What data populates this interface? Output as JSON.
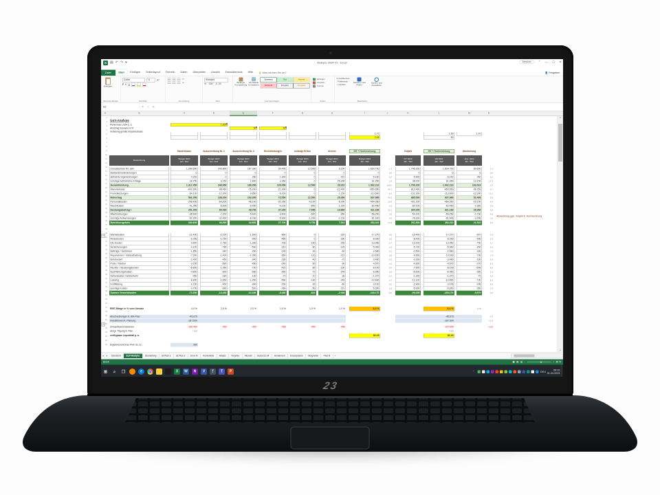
{
  "colors": {
    "excel_green": "#217346",
    "total_green": "#3a873a",
    "subtotal_green": "#e2efda",
    "yellow": "#ffff00",
    "orange": "#ffc000",
    "light_blue": "#dce6f1",
    "header_gray": "#595959",
    "negative_red": "#ff0000",
    "group_header_text": "#843c0c"
  },
  "titlebar": {
    "title": "Analyse 2024 V2 - Excel",
    "user": "Benutzer"
  },
  "ribbon": {
    "file": "Datei",
    "active_tab": "Start",
    "tabs": [
      "Start",
      "Einfügen",
      "Seitenlayout",
      "Formeln",
      "Daten",
      "Überprüfen",
      "Ansicht",
      "Entwicklertools",
      "Hilfe"
    ],
    "tellme": "Was möchten Sie tun?",
    "share": "Freigeben",
    "font_name": "Calibri",
    "font_size": "11",
    "number_format": "Standard",
    "paste": "Einfügen",
    "cond": "Bedingte Formatierung",
    "astable": "Als Tabelle formatieren",
    "styles": [
      "Standard",
      "Gut",
      "Neutral",
      "Schlecht",
      "Eingabe",
      "Ausgabe"
    ],
    "groups": [
      "Zwischenablage",
      "Schriftart",
      "Ausrichtung",
      "Zahl",
      "Formatvorlagen",
      "Zellen",
      "Bearbeiten"
    ],
    "cells_btns": [
      "Einfügen",
      "Löschen",
      "Format"
    ],
    "edit_small": [
      "AutoSumme",
      "Füllbereich",
      "Löschen"
    ],
    "edit_big": [
      "Sortieren und Filtern",
      "Suchen und Auswählen"
    ]
  },
  "formula": {
    "name_box": "E8"
  },
  "col_letters": {
    "letters": [
      "A",
      "B",
      "C",
      "D",
      "E",
      "F",
      "G",
      "H",
      "I",
      "J",
      "K",
      "L",
      "M",
      "N"
    ],
    "selected": "E"
  },
  "sheet": {
    "title": "GuV-Analyse",
    "inputs": [
      {
        "label": "Planumsatz 2024 p. a.",
        "cells": [
          {
            "col": 0,
            "span": 2,
            "value": "1.500",
            "style": "yellow",
            "comment": true
          }
        ]
      },
      {
        "label": "Abschlag Szenario in %",
        "cells": [
          {
            "col": 2,
            "span": 1,
            "value": "50",
            "style": "yellow",
            "comment": true
          },
          {
            "col": 3,
            "span": 1,
            "value": "50",
            "style": "yellow",
            "comment": true
          }
        ]
      },
      {
        "label": "Verteilung gemäß Vorjahresbasis",
        "cells": []
      }
    ],
    "mini_boxes": {
      "hl": [
        "1,71",
        "2,05"
      ],
      "r2": [
        "1,50",
        "50"
      ],
      "r3": [
        "1,70"
      ]
    },
    "group_headers": {
      "left": [
        "Handelsware",
        "Ausschreibung Nr. 1",
        "Ausschreibung Nr. 2",
        "Dienstleistungen",
        "sonstige Erlöse",
        "diverse"
      ],
      "hl": "IST + Hochrechnung",
      "right": [
        "Vorjahr",
        "IST + Hochrechnung",
        "Abweichung"
      ]
    },
    "headers": {
      "label": "Bezeichnung",
      "l1": "Budget 2024",
      "l2": "Jan - Dez",
      "r1a": "IST 2023",
      "r2a": "HR 2024",
      "r3a": "Abw. 2024"
    },
    "annotation": "Abweichung ggü. Vorjahr lt. Hochrechnung",
    "upper_rows": [
      {
        "t": "n",
        "label": "Umsatzerlöse lfd. Jahr",
        "v": [
          "1.284.500",
          "245.800",
          "187.300",
          "96.400",
          "12.500",
          "8.200"
        ],
        "hl": "1.834.700",
        "p": "1,7",
        "r": [
          "1.745.200",
          "1.834.700",
          "89.500"
        ],
        "rp": "5,1"
      },
      {
        "t": "n",
        "label": "Bestandsveränderungen",
        "v": [
          "0",
          "0",
          "0",
          "0",
          "0",
          "0"
        ],
        "hl": "0",
        "p": "0,0",
        "r": [
          "0",
          "0",
          "0"
        ],
        "rp": "0,0"
      },
      {
        "t": "n",
        "label": "aktivierte Eigenleistungen",
        "v": [
          "4.200",
          "0",
          "250",
          "1.300",
          "0",
          "410"
        ],
        "hl": "6.160",
        "p": "0,3",
        "r": [
          "5.800",
          "6.160",
          "360"
        ],
        "rp": "6,2"
      },
      {
        "t": "n",
        "label": "sonstige betriebliche Erträge",
        "v": [
          "28.750",
          "3.150",
          "1.800",
          "2.350",
          "0",
          "25.300"
        ],
        "hl": "61.350",
        "p": "2,8",
        "r": [
          "48.200",
          "61.350",
          "13.150"
        ],
        "rp": "27,3"
      },
      {
        "t": "s",
        "label": "Gesamtleistung",
        "v": [
          "1.317.450",
          "248.950",
          "189.350",
          "100.050",
          "12.500",
          "33.910"
        ],
        "hl": "1.902.210",
        "p": "100,0",
        "r": [
          "1.799.200",
          "1.902.210",
          "103.010"
        ],
        "rp": "5,7"
      },
      {
        "t": "n",
        "label": "Wareneinsatz",
        "v": [
          "-642.300",
          "-98.450",
          "-76.200",
          "-21.300",
          "0",
          "-12.400"
        ],
        "hl": "-850.650",
        "p": "44,7",
        "r": [
          "-812.400",
          "-850.650",
          "-38.250"
        ],
        "rp": "4,7"
      },
      {
        "t": "n",
        "label": "Fremdleistungen",
        "v": [
          "-84.100",
          "-12.300",
          "-9.850",
          "-6.200",
          "0",
          "-1.150"
        ],
        "hl": "-113.600",
        "p": "6,0",
        "r": [
          "-101.300",
          "-113.600",
          "-12.300"
        ],
        "rp": "12,1"
      },
      {
        "t": "s",
        "label": "Rohertrag",
        "v": [
          "591.050",
          "138.200",
          "103.300",
          "72.550",
          "12.500",
          "20.360"
        ],
        "hl": "937.960",
        "p": "49,3",
        "r": [
          "885.500",
          "937.960",
          "52.460"
        ],
        "rp": "5,9"
      },
      {
        "t": "n",
        "label": "Personalkosten",
        "v": [
          "-298.400",
          "-64.200",
          "-48.100",
          "-31.250",
          "-4.100",
          "-8.300"
        ],
        "hl": "-454.350",
        "p": "23,9",
        "r": [
          "-431.200",
          "-454.350",
          "-23.150"
        ],
        "rp": "5,4"
      },
      {
        "t": "n",
        "label": "Raumkosten",
        "v": [
          "-41.250",
          "-8.600",
          "-6.450",
          "-4.100",
          "-850",
          "-1.200"
        ],
        "hl": "-62.450",
        "p": "3,3",
        "r": [
          "-60.100",
          "-62.450",
          "-2.350"
        ],
        "rp": "3,9"
      },
      {
        "t": "s",
        "label": "Deckungsbeitrag I",
        "v": [
          "251.400",
          "65.400",
          "48.750",
          "37.200",
          "7.550",
          "10.860"
        ],
        "hl": "421.160",
        "p": "22,1",
        "r": [
          "394.200",
          "421.160",
          "26.960"
        ],
        "rp": "6,8"
      },
      {
        "t": "n",
        "label": "Abschreibungen",
        "v": [
          "-38.500",
          "-7.200",
          "-5.400",
          "-3.600",
          "-600",
          "-950"
        ],
        "hl": "-56.250",
        "p": "3,0",
        "r": [
          "-54.100",
          "-56.250",
          "-2.150"
        ],
        "rp": "4,0"
      },
      {
        "t": "n",
        "label": "sonstige Aufwendungen",
        "v": [
          "-52.300",
          "-11.400",
          "-8.700",
          "-5.900",
          "-1.200",
          "-2.100"
        ],
        "hl": "-81.600",
        "p": "4,3",
        "r": [
          "-78.300",
          "-81.600",
          "-3.300"
        ],
        "rp": "4,2"
      },
      {
        "t": "t",
        "label": "Betriebsergebnis",
        "v": [
          "160.600",
          "46.800",
          "34.650",
          "27.700",
          "5.750",
          "7.810"
        ],
        "hl": "283.310",
        "p": "14,9",
        "r": [
          "261.800",
          "283.310",
          "21.510"
        ],
        "rp": "8,2"
      }
    ],
    "mid_rows": [
      {
        "t": "n",
        "label": "Werbekosten",
        "v": [
          "-12.400",
          "-2.100",
          "-1.600",
          "-850",
          "0",
          "-320"
        ],
        "hl": "-17.270",
        "p": "0,9",
        "r": [
          "-16.400",
          "-17.270",
          "-870"
        ],
        "rp": "5,3"
      },
      {
        "t": "n",
        "label": "Reisekosten",
        "v": [
          "-6.250",
          "-1.150",
          "-900",
          "-450",
          "0",
          "-180"
        ],
        "hl": "-8.930",
        "p": "0,5",
        "r": [
          "-8.400",
          "-8.930",
          "-530"
        ],
        "rp": "6,3"
      },
      {
        "t": "n",
        "label": "Kfz-Kosten",
        "v": [
          "-9.800",
          "-1.750",
          "-1.300",
          "-700",
          "-150",
          "-250"
        ],
        "hl": "-13.950",
        "p": "0,7",
        "r": [
          "-13.200",
          "-13.950",
          "-750"
        ],
        "rp": "5,7"
      },
      {
        "t": "n",
        "label": "Versicherungen",
        "v": [
          "-4.100",
          "-780",
          "-590",
          "-310",
          "-60",
          "-120"
        ],
        "hl": "-5.960",
        "p": "0,3",
        "r": [
          "-5.700",
          "-5.960",
          "-260"
        ],
        "rp": "4,6"
      },
      {
        "t": "n",
        "label": "Beiträge / Gebühren",
        "v": [
          "-1.850",
          "-340",
          "-260",
          "-140",
          "-30",
          "-60"
        ],
        "hl": "-2.680",
        "p": "0,1",
        "r": [
          "-2.500",
          "-2.680",
          "-180"
        ],
        "rp": "7,2"
      },
      {
        "t": "n",
        "label": "Reparaturen / Instandhaltung",
        "v": [
          "-7.300",
          "-1.400",
          "-1.050",
          "-560",
          "-110",
          "-210"
        ],
        "hl": "-10.630",
        "p": "0,6",
        "r": [
          "-9.900",
          "-10.630",
          "-730"
        ],
        "rp": "7,4"
      },
      {
        "t": "n",
        "label": "Bürobedarf",
        "v": [
          "-2.400",
          "-450",
          "-340",
          "-180",
          "-40",
          "-70"
        ],
        "hl": "-3.480",
        "p": "0,2",
        "r": [
          "-3.300",
          "-3.480",
          "-180"
        ],
        "rp": "5,5"
      },
      {
        "t": "n",
        "label": "Porto / Telefon",
        "v": [
          "-3.150",
          "-590",
          "-450",
          "-240",
          "-50",
          "-90"
        ],
        "hl": "-4.570",
        "p": "0,2",
        "r": [
          "-4.300",
          "-4.570",
          "-270"
        ],
        "rp": "6,3"
      },
      {
        "t": "n",
        "label": "Rechts- / Beratungskosten",
        "v": [
          "-5.600",
          "-1.050",
          "-790",
          "-420",
          "-80",
          "-160"
        ],
        "hl": "-8.100",
        "p": "0,4",
        "r": [
          "-7.600",
          "-8.100",
          "-500"
        ],
        "rp": "6,6"
      },
      {
        "t": "n",
        "label": "Buchführungskosten",
        "v": [
          "-4.800",
          "-900",
          "-680",
          "-360",
          "-70",
          "-140"
        ],
        "hl": "-6.950",
        "p": "0,4",
        "r": [
          "-6.600",
          "-6.950",
          "-350"
        ],
        "rp": "5,3"
      },
      {
        "t": "n",
        "label": "Nebenkosten Geldverkehr",
        "v": [
          "-950",
          "-180",
          "-130",
          "-70",
          "-10",
          "-30"
        ],
        "hl": "-1.370",
        "p": "0,1",
        "r": [
          "-1.300",
          "-1.370",
          "-70"
        ],
        "rp": "5,4"
      },
      {
        "t": "n",
        "label": "Leasing",
        "v": [
          "-8.900",
          "-1.650",
          "-1.250",
          "-660",
          "-130",
          "-240"
        ],
        "hl": "-12.830",
        "p": "0,7",
        "r": [
          "-12.100",
          "-12.830",
          "-730"
        ],
        "rp": "6,0"
      },
      {
        "t": "n",
        "label": "Fortbildung",
        "v": [
          "-2.150",
          "-400",
          "-300",
          "-160",
          "-30",
          "-60"
        ],
        "hl": "-3.100",
        "p": "0,2",
        "r": [
          "-2.900",
          "-3.100",
          "-200"
        ],
        "rp": "6,9"
      },
      {
        "t": "n",
        "label": "sonstige Kosten",
        "v": [
          "-3.700",
          "-690",
          "-520",
          "-280",
          "-50",
          "-110"
        ],
        "hl": "-5.350",
        "p": "0,3",
        "r": [
          "-5.000",
          "-5.350",
          "-350"
        ],
        "rp": "7,0"
      },
      {
        "t": "t",
        "label": "Summe Gemeinkosten",
        "v": [
          "-73.350",
          "-13.430",
          "-10.160",
          "-5.380",
          "-810",
          "-2.040"
        ],
        "hl": "-105.170",
        "p": "5,5",
        "r": [
          "-99.200",
          "-105.170",
          "-5.970"
        ],
        "rp": "6,0"
      }
    ],
    "bottom": {
      "ebit": {
        "label": "EBIT-Marge in % vom Umsatz",
        "v": [
          "4,0 %",
          "2,5 %",
          "2,5 %",
          "1,0 %",
          "1,0 %",
          "1,0 %"
        ],
        "hl": "8,4 %",
        "r2": "8,4 %",
        "note": "17%"
      },
      "blue1": {
        "label": "Abschreibungen lt. AfA-Plan",
        "c1": "-45.675",
        "r2": "-45.675",
        "note": "-4,7"
      },
      "blue2": {
        "label": "Investitionen lt. Planung",
        "c1": "-187.500",
        "r2": "-187.500",
        "note": "+1,4"
      },
      "red": {
        "label": "Zinsaufwand Darlehen",
        "v": [
          "-105.400",
          "-450",
          "-450",
          "-450",
          "-450",
          "-450"
        ],
        "r2": "-107.650",
        "note": "-4,50"
      },
      "plain": {
        "label": "abzgl. Tilgung lt. Plan",
        "c1": "7.500",
        "r2": "7.500"
      },
      "yellow": {
        "label": "verfügbare Liquidität p. a.",
        "hl": "82,15",
        "r2": "82,15"
      },
      "note": {
        "label": "Ergebnisvorschau Plan 31.12.",
        "c1": "350"
      }
    }
  },
  "tabs": {
    "items": [
      "Übersicht",
      "GuV-Analyse",
      "Überleitung",
      "Ist Plan 1",
      "Ist Plan 2",
      "Ist in %",
      "Kontenliste",
      "Absatz",
      "Vorjahre",
      "Monate",
      "SuSa 02-24",
      "Annahmen",
      "Einzelposten",
      "Diagramm",
      "Plan B"
    ],
    "active": "GuV-Analyse",
    "add": "+"
  },
  "status": {
    "ready": "Bereit",
    "zoom": "80 %"
  },
  "taskbar": {
    "lang": "DEU",
    "time": "08:19",
    "date": "01.04.2024",
    "apps": [
      {
        "name": "start-button",
        "color": "transparent",
        "glyph": "⊞",
        "fg": "#e8e8e8"
      },
      {
        "name": "search-icon",
        "color": "transparent",
        "glyph": "⌕",
        "fg": "#cfcfcf"
      },
      {
        "name": "task-view-icon",
        "color": "transparent",
        "glyph": "❒",
        "fg": "#cfcfcf"
      },
      {
        "name": "app-firefox",
        "color": "#ff8a00",
        "glyph": ""
      },
      {
        "name": "app-edge",
        "color": "#0b79d0",
        "glyph": "e"
      },
      {
        "name": "app-chrome",
        "color": "#de5246",
        "glyph": ""
      },
      {
        "name": "app-explorer",
        "color": "#ffcf40",
        "glyph": ""
      },
      {
        "name": "app-photos",
        "color": "#1b1b1b",
        "glyph": ""
      },
      {
        "name": "app-excel",
        "color": "#107c41",
        "glyph": "X"
      },
      {
        "name": "app-word",
        "color": "#2b579a",
        "glyph": "W"
      },
      {
        "name": "app-onenote",
        "color": "#7719aa",
        "glyph": "N"
      },
      {
        "name": "app-visio",
        "color": "#3955a3",
        "glyph": "V"
      },
      {
        "name": "app-network",
        "color": "#44525f",
        "glyph": "ᛉ"
      },
      {
        "name": "app-teams",
        "color": "#4b53bc",
        "glyph": "T"
      },
      {
        "name": "app-powerpoint",
        "color": "#d24726",
        "glyph": "P"
      }
    ],
    "tray": [
      "#4caf50",
      "#e8e8e8",
      "#03a9f4",
      "#9c27b0",
      "#f44336",
      "#ffc107",
      "#8bc34a",
      "#00bcd4",
      "#ff5722",
      "#90a4ae",
      "#3f51b5",
      "#009688",
      "#eeeeee",
      "#1e88e5"
    ]
  },
  "laptop": {
    "logo": "23"
  }
}
